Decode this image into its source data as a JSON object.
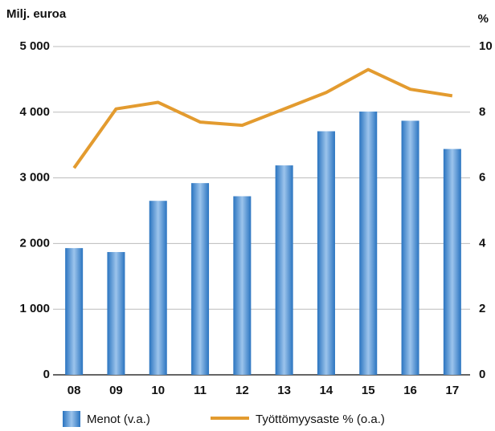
{
  "chart_data": {
    "type": "bar",
    "y_label": "Milj. euroa",
    "y2_label": "%",
    "categories": [
      "08",
      "09",
      "10",
      "11",
      "12",
      "13",
      "14",
      "15",
      "16",
      "17"
    ],
    "series": [
      {
        "name": "Menot (v.a.)",
        "type": "bar",
        "color": "#2a74c0",
        "values": [
          1930,
          1870,
          2650,
          2920,
          2720,
          3190,
          3710,
          4010,
          3870,
          3440
        ]
      },
      {
        "name": "Työttömyysaste % (o.a.)",
        "type": "line",
        "axis": "y2",
        "color": "#e39b2f",
        "values": [
          6.3,
          8.1,
          8.3,
          7.7,
          7.6,
          8.1,
          8.6,
          9.3,
          8.7,
          8.5
        ]
      }
    ],
    "ylim": [
      0,
      5000
    ],
    "yticks": [
      0,
      {
        "value": 1000,
        "label": "1 000"
      },
      {
        "value": 2000,
        "label": "2 000"
      },
      {
        "value": 3000,
        "label": "3 000"
      },
      {
        "value": 4000,
        "label": "4 000"
      },
      {
        "value": 5000,
        "label": "5 000"
      }
    ],
    "y2lim": [
      0,
      10
    ],
    "y2ticks": [
      0,
      2,
      4,
      6,
      8,
      10
    ],
    "grid": true
  }
}
